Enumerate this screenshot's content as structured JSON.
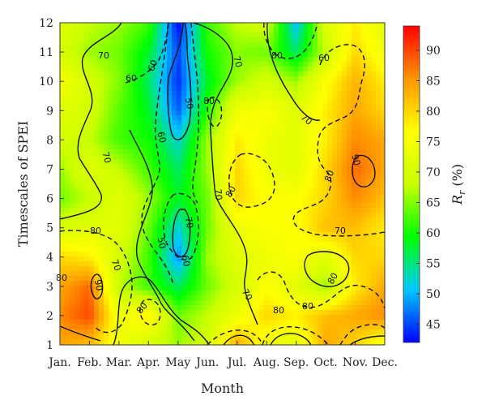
{
  "chart_data": {
    "type": "heatmap",
    "title": "",
    "xlabel": "Month",
    "ylabel": "Timescales of SPEI",
    "colorbar_label": "R_r (%)",
    "x_categories": [
      "Jan.",
      "Feb.",
      "Mar.",
      "Apr.",
      "May",
      "Jun.",
      "Jul.",
      "Aug.",
      "Sep.",
      "Oct.",
      "Nov.",
      "Dec."
    ],
    "y_ticks": [
      1,
      2,
      3,
      4,
      5,
      6,
      7,
      8,
      9,
      10,
      11,
      12
    ],
    "ylim": [
      1,
      12
    ],
    "colorbar_range": [
      42,
      94
    ],
    "colorbar_ticks": [
      45,
      50,
      55,
      60,
      65,
      70,
      75,
      80,
      85,
      90
    ],
    "colormap": [
      "#0000ff",
      "#00c8ff",
      "#00ff00",
      "#c8ff00",
      "#ffff00",
      "#ff9600",
      "#ff0000"
    ],
    "grid": false,
    "contour_levels": [
      50,
      60,
      70,
      80,
      90
    ],
    "contour_labels": [
      "70",
      "60",
      "70",
      "60",
      "60",
      "50",
      "80",
      "70",
      "70",
      "80",
      "70",
      "60",
      "70",
      "50",
      "60",
      "80",
      "90",
      "80",
      "70",
      "80",
      "80",
      "70",
      "70",
      "80",
      "80",
      "80",
      "90",
      "80"
    ],
    "grid_months_rows_from_timescale_12_to_1": [
      [
        72,
        68,
        66,
        62,
        42,
        62,
        68,
        70,
        50,
        72,
        78,
        72
      ],
      [
        70,
        66,
        64,
        58,
        45,
        60,
        65,
        64,
        56,
        68,
        80,
        74
      ],
      [
        75,
        70,
        65,
        56,
        44,
        58,
        66,
        70,
        66,
        76,
        83,
        78
      ],
      [
        72,
        70,
        63,
        58,
        46,
        61,
        74,
        76,
        72,
        78,
        84,
        80
      ],
      [
        70,
        68,
        62,
        60,
        52,
        66,
        78,
        74,
        72,
        78,
        86,
        84
      ],
      [
        66,
        72,
        68,
        62,
        56,
        66,
        80,
        74,
        72,
        80,
        88,
        84
      ],
      [
        64,
        68,
        72,
        66,
        58,
        64,
        80,
        76,
        76,
        80,
        86,
        82
      ],
      [
        70,
        72,
        72,
        64,
        52,
        64,
        74,
        76,
        76,
        82,
        82,
        78
      ],
      [
        80,
        78,
        70,
        62,
        48,
        66,
        72,
        74,
        76,
        72,
        80,
        80
      ],
      [
        84,
        88,
        68,
        62,
        56,
        64,
        70,
        76,
        72,
        66,
        78,
        84
      ],
      [
        86,
        90,
        74,
        78,
        64,
        68,
        74,
        80,
        78,
        82,
        84,
        86
      ],
      [
        84,
        82,
        74,
        70,
        66,
        70,
        84,
        74,
        72,
        84,
        80,
        74
      ]
    ]
  },
  "colors": {
    "contour": "#111111",
    "axis": "#333333",
    "background": "#ffffff"
  }
}
